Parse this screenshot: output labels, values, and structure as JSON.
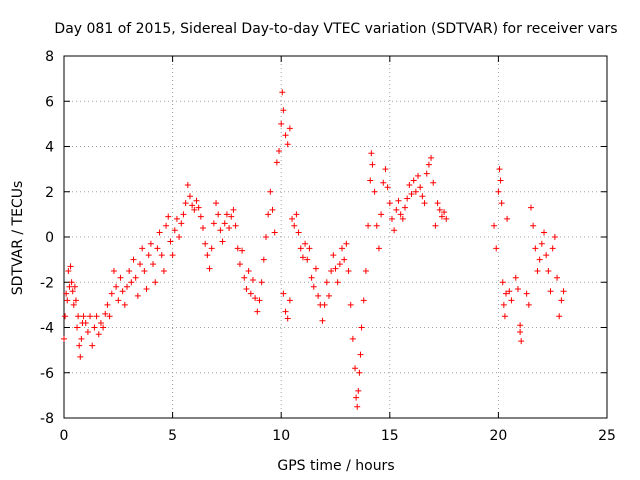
{
  "chart_data": {
    "type": "scatter",
    "title": "Day 081 of 2015, Sidereal Day-to-day VTEC variation (SDTVAR) for receiver vars",
    "xlabel": "GPS time / hours",
    "ylabel": "SDTVAR / TECUs",
    "xlim": [
      0,
      25
    ],
    "ylim": [
      -8,
      8
    ],
    "xticks": [
      0,
      5,
      10,
      15,
      20,
      25
    ],
    "yticks": [
      -8,
      -6,
      -4,
      -2,
      0,
      2,
      4,
      6,
      8
    ],
    "grid": true,
    "marker": "+",
    "color": "#ff0000",
    "series": [
      {
        "name": "SDTVAR",
        "points": [
          [
            0.0,
            -4.5
          ],
          [
            0.05,
            -3.5
          ],
          [
            0.1,
            -2.5
          ],
          [
            0.15,
            -2.8
          ],
          [
            0.2,
            -1.5
          ],
          [
            0.25,
            -2.2
          ],
          [
            0.3,
            -1.3
          ],
          [
            0.35,
            -2.0
          ],
          [
            0.4,
            -2.4
          ],
          [
            0.45,
            -3.0
          ],
          [
            0.5,
            -2.2
          ],
          [
            0.55,
            -2.8
          ],
          [
            0.6,
            -4.0
          ],
          [
            0.65,
            -3.5
          ],
          [
            0.7,
            -4.8
          ],
          [
            0.75,
            -5.3
          ],
          [
            0.8,
            -4.5
          ],
          [
            0.85,
            -3.8
          ],
          [
            0.9,
            -3.5
          ],
          [
            1.0,
            -3.8
          ],
          [
            1.1,
            -4.2
          ],
          [
            1.2,
            -3.5
          ],
          [
            1.3,
            -4.8
          ],
          [
            1.4,
            -4.0
          ],
          [
            1.5,
            -3.5
          ],
          [
            1.6,
            -4.3
          ],
          [
            1.7,
            -3.8
          ],
          [
            1.8,
            -4.0
          ],
          [
            1.9,
            -3.4
          ],
          [
            2.0,
            -3.0
          ],
          [
            2.1,
            -3.5
          ],
          [
            2.2,
            -2.5
          ],
          [
            2.3,
            -1.5
          ],
          [
            2.4,
            -2.2
          ],
          [
            2.5,
            -2.8
          ],
          [
            2.6,
            -1.8
          ],
          [
            2.7,
            -2.4
          ],
          [
            2.8,
            -3.0
          ],
          [
            2.9,
            -2.2
          ],
          [
            3.0,
            -1.5
          ],
          [
            3.1,
            -2.0
          ],
          [
            3.2,
            -1.0
          ],
          [
            3.3,
            -1.8
          ],
          [
            3.4,
            -2.6
          ],
          [
            3.5,
            -1.2
          ],
          [
            3.6,
            -0.5
          ],
          [
            3.7,
            -1.5
          ],
          [
            3.8,
            -2.3
          ],
          [
            3.9,
            -0.8
          ],
          [
            4.0,
            -0.3
          ],
          [
            4.1,
            -1.2
          ],
          [
            4.2,
            -2.0
          ],
          [
            4.3,
            -0.5
          ],
          [
            4.4,
            0.2
          ],
          [
            4.5,
            -0.8
          ],
          [
            4.6,
            -1.5
          ],
          [
            4.7,
            0.5
          ],
          [
            4.8,
            0.9
          ],
          [
            4.9,
            -0.2
          ],
          [
            5.0,
            -0.8
          ],
          [
            5.1,
            0.3
          ],
          [
            5.2,
            0.8
          ],
          [
            5.3,
            0.0
          ],
          [
            5.4,
            0.6
          ],
          [
            5.5,
            1.0
          ],
          [
            5.6,
            1.5
          ],
          [
            5.7,
            2.3
          ],
          [
            5.8,
            1.8
          ],
          [
            5.9,
            1.4
          ],
          [
            6.0,
            1.2
          ],
          [
            6.1,
            1.6
          ],
          [
            6.2,
            1.3
          ],
          [
            6.3,
            0.9
          ],
          [
            6.4,
            0.4
          ],
          [
            6.5,
            -0.3
          ],
          [
            6.6,
            -0.8
          ],
          [
            6.7,
            -1.4
          ],
          [
            6.8,
            -0.5
          ],
          [
            6.9,
            0.6
          ],
          [
            7.0,
            1.5
          ],
          [
            7.1,
            1.0
          ],
          [
            7.2,
            0.3
          ],
          [
            7.3,
            -0.2
          ],
          [
            7.4,
            0.6
          ],
          [
            7.5,
            1.0
          ],
          [
            7.6,
            0.4
          ],
          [
            7.7,
            0.9
          ],
          [
            7.8,
            1.2
          ],
          [
            7.9,
            0.5
          ],
          [
            8.0,
            -0.5
          ],
          [
            8.1,
            -1.2
          ],
          [
            8.2,
            -0.6
          ],
          [
            8.3,
            -1.8
          ],
          [
            8.4,
            -2.3
          ],
          [
            8.5,
            -1.5
          ],
          [
            8.6,
            -2.5
          ],
          [
            8.7,
            -1.9
          ],
          [
            8.8,
            -2.7
          ],
          [
            8.9,
            -3.3
          ],
          [
            9.0,
            -2.8
          ],
          [
            9.1,
            -2.0
          ],
          [
            9.2,
            -1.0
          ],
          [
            9.3,
            0.0
          ],
          [
            9.4,
            1.0
          ],
          [
            9.5,
            2.0
          ],
          [
            9.6,
            1.2
          ],
          [
            9.7,
            0.2
          ],
          [
            9.8,
            3.3
          ],
          [
            9.9,
            3.8
          ],
          [
            10.0,
            5.0
          ],
          [
            10.05,
            6.4
          ],
          [
            10.1,
            5.6
          ],
          [
            10.2,
            4.5
          ],
          [
            10.3,
            4.1
          ],
          [
            10.4,
            4.8
          ],
          [
            10.1,
            -2.5
          ],
          [
            10.2,
            -3.3
          ],
          [
            10.3,
            -3.6
          ],
          [
            10.4,
            -2.8
          ],
          [
            10.5,
            0.8
          ],
          [
            10.6,
            0.5
          ],
          [
            10.7,
            1.0
          ],
          [
            10.8,
            0.2
          ],
          [
            10.9,
            -0.5
          ],
          [
            11.0,
            -0.9
          ],
          [
            11.1,
            -0.3
          ],
          [
            11.2,
            -1.0
          ],
          [
            11.3,
            -0.5
          ],
          [
            11.4,
            -1.8
          ],
          [
            11.5,
            -2.2
          ],
          [
            11.6,
            -1.4
          ],
          [
            11.7,
            -2.6
          ],
          [
            11.8,
            -3.0
          ],
          [
            11.9,
            -3.7
          ],
          [
            12.0,
            -3.0
          ],
          [
            12.1,
            -2.0
          ],
          [
            12.2,
            -2.6
          ],
          [
            12.3,
            -1.5
          ],
          [
            12.4,
            -0.8
          ],
          [
            12.5,
            -1.4
          ],
          [
            12.6,
            -2.0
          ],
          [
            12.7,
            -1.2
          ],
          [
            12.8,
            -0.5
          ],
          [
            12.9,
            -1.0
          ],
          [
            13.0,
            -0.3
          ],
          [
            13.1,
            -1.5
          ],
          [
            13.2,
            -3.0
          ],
          [
            13.3,
            -4.5
          ],
          [
            13.4,
            -5.8
          ],
          [
            13.45,
            -7.1
          ],
          [
            13.5,
            -7.5
          ],
          [
            13.55,
            -6.8
          ],
          [
            13.6,
            -6.0
          ],
          [
            13.65,
            -5.2
          ],
          [
            13.7,
            -4.0
          ],
          [
            13.8,
            -2.8
          ],
          [
            13.9,
            -1.5
          ],
          [
            14.0,
            0.5
          ],
          [
            14.1,
            2.5
          ],
          [
            14.15,
            3.7
          ],
          [
            14.2,
            3.2
          ],
          [
            14.3,
            2.0
          ],
          [
            14.4,
            0.5
          ],
          [
            14.5,
            -0.5
          ],
          [
            14.6,
            1.0
          ],
          [
            14.7,
            2.4
          ],
          [
            14.8,
            3.0
          ],
          [
            14.9,
            2.2
          ],
          [
            15.0,
            1.5
          ],
          [
            15.1,
            0.8
          ],
          [
            15.2,
            0.3
          ],
          [
            15.3,
            1.2
          ],
          [
            15.4,
            1.6
          ],
          [
            15.5,
            1.0
          ],
          [
            15.6,
            0.8
          ],
          [
            15.7,
            1.3
          ],
          [
            15.8,
            1.7
          ],
          [
            15.9,
            2.3
          ],
          [
            16.0,
            1.9
          ],
          [
            16.1,
            2.5
          ],
          [
            16.2,
            2.0
          ],
          [
            16.3,
            2.7
          ],
          [
            16.4,
            2.2
          ],
          [
            16.5,
            1.8
          ],
          [
            16.6,
            1.5
          ],
          [
            16.7,
            2.8
          ],
          [
            16.8,
            3.2
          ],
          [
            16.9,
            3.5
          ],
          [
            17.0,
            2.4
          ],
          [
            17.1,
            0.5
          ],
          [
            17.2,
            1.5
          ],
          [
            17.3,
            1.2
          ],
          [
            17.4,
            0.9
          ],
          [
            17.5,
            1.1
          ],
          [
            17.6,
            0.8
          ],
          [
            19.8,
            0.5
          ],
          [
            19.9,
            -0.5
          ],
          [
            20.0,
            2.0
          ],
          [
            20.05,
            3.0
          ],
          [
            20.1,
            2.5
          ],
          [
            20.15,
            1.5
          ],
          [
            20.2,
            -2.0
          ],
          [
            20.25,
            -3.0
          ],
          [
            20.3,
            -3.5
          ],
          [
            20.35,
            -2.5
          ],
          [
            20.4,
            0.8
          ],
          [
            20.5,
            -2.4
          ],
          [
            20.6,
            -2.8
          ],
          [
            20.8,
            -1.8
          ],
          [
            20.9,
            -2.3
          ],
          [
            21.0,
            -4.2
          ],
          [
            21.05,
            -4.6
          ],
          [
            21.0,
            -3.9
          ],
          [
            21.3,
            -2.5
          ],
          [
            21.4,
            -3.0
          ],
          [
            21.5,
            1.3
          ],
          [
            21.6,
            0.5
          ],
          [
            21.7,
            -0.5
          ],
          [
            21.8,
            -1.5
          ],
          [
            21.9,
            -1.0
          ],
          [
            22.0,
            -0.3
          ],
          [
            22.1,
            0.2
          ],
          [
            22.2,
            -0.8
          ],
          [
            22.3,
            -1.5
          ],
          [
            22.4,
            -2.4
          ],
          [
            22.5,
            -0.5
          ],
          [
            22.6,
            0.0
          ],
          [
            22.7,
            -1.8
          ],
          [
            22.8,
            -3.5
          ],
          [
            22.9,
            -2.8
          ],
          [
            23.0,
            -2.4
          ]
        ]
      }
    ]
  }
}
